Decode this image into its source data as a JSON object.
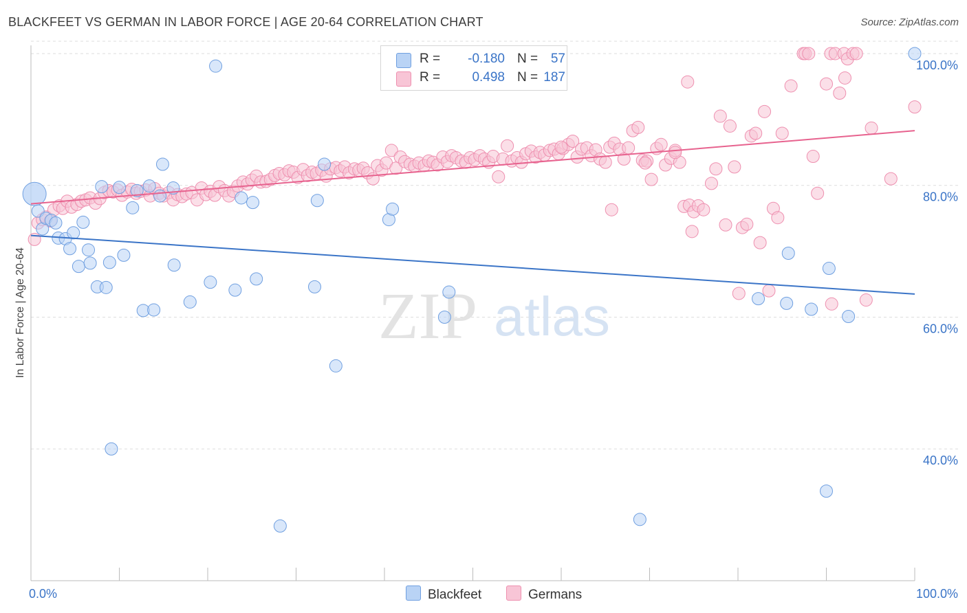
{
  "title": "BLACKFEET VS GERMAN IN LABOR FORCE | AGE 20-64 CORRELATION CHART",
  "source": "Source: ZipAtlas.com",
  "watermark": {
    "zip": "ZIP",
    "atlas": "atlas"
  },
  "colors": {
    "blackfeet_fill": "#b9d3f5",
    "blackfeet_stroke": "#6f9fe0",
    "blackfeet_line": "#3a74c7",
    "germans_fill": "#f8c5d6",
    "germans_stroke": "#ee8faf",
    "germans_line": "#e7628e",
    "tick_text": "#3a74c7",
    "grid": "#dddddd"
  },
  "legend": {
    "r_label": "R =",
    "n_label": "N =",
    "rows": [
      {
        "series": "Blackfeet",
        "r": "-0.180",
        "n": "57"
      },
      {
        "series": "Germans",
        "r": "0.498",
        "n": "187"
      }
    ]
  },
  "chart_data": {
    "type": "scatter",
    "title": "BLACKFEET VS GERMAN IN LABOR FORCE | AGE 20-64 CORRELATION CHART",
    "xlabel": "",
    "ylabel": "In Labor Force | Age 20-64",
    "xlim": [
      0,
      100
    ],
    "ylim": [
      20,
      102.5
    ],
    "x_tick_labels": [
      {
        "value": 0,
        "label": "0.0%"
      },
      {
        "value": 100,
        "label": "100.0%"
      }
    ],
    "y_tick_labels": [
      {
        "value": 40,
        "label": "40.0%"
      },
      {
        "value": 60,
        "label": "60.0%"
      },
      {
        "value": 80,
        "label": "80.0%"
      },
      {
        "value": 100,
        "label": "100.0%"
      }
    ],
    "grid": "horizontal dashed",
    "legend_position": "top-center and bottom",
    "series": [
      {
        "name": "Blackfeet",
        "r": -0.18,
        "n": 57,
        "trend": {
          "x": [
            0,
            100
          ],
          "y": [
            72.4,
            63.5
          ]
        },
        "points": [
          [
            0.4,
            78.7
          ],
          [
            0.8,
            76.1
          ],
          [
            1.3,
            73.4
          ],
          [
            1.7,
            75.0
          ],
          [
            2.3,
            74.7
          ],
          [
            2.8,
            74.3
          ],
          [
            3.1,
            72.0
          ],
          [
            3.9,
            71.9
          ],
          [
            4.4,
            70.4
          ],
          [
            4.8,
            72.8
          ],
          [
            5.4,
            67.7
          ],
          [
            5.9,
            74.4
          ],
          [
            6.5,
            70.2
          ],
          [
            6.7,
            68.2
          ],
          [
            7.5,
            64.6
          ],
          [
            8.0,
            79.8
          ],
          [
            8.5,
            64.5
          ],
          [
            8.9,
            68.3
          ],
          [
            9.1,
            40.0
          ],
          [
            10.0,
            79.7
          ],
          [
            10.5,
            69.4
          ],
          [
            11.5,
            76.6
          ],
          [
            12.0,
            79.2
          ],
          [
            12.7,
            61.0
          ],
          [
            13.4,
            79.9
          ],
          [
            13.9,
            61.1
          ],
          [
            14.6,
            78.4
          ],
          [
            14.9,
            83.2
          ],
          [
            16.1,
            79.6
          ],
          [
            16.2,
            67.9
          ],
          [
            18.0,
            62.3
          ],
          [
            20.3,
            65.3
          ],
          [
            20.9,
            98.1
          ],
          [
            23.1,
            64.1
          ],
          [
            23.8,
            78.1
          ],
          [
            25.1,
            77.4
          ],
          [
            25.5,
            65.8
          ],
          [
            28.2,
            28.3
          ],
          [
            32.1,
            64.6
          ],
          [
            32.4,
            77.7
          ],
          [
            33.2,
            83.2
          ],
          [
            34.5,
            52.6
          ],
          [
            40.5,
            74.8
          ],
          [
            40.9,
            76.4
          ],
          [
            46.8,
            60.0
          ],
          [
            47.3,
            63.8
          ],
          [
            68.9,
            29.3
          ],
          [
            82.3,
            62.8
          ],
          [
            85.5,
            62.1
          ],
          [
            85.7,
            69.7
          ],
          [
            88.3,
            61.2
          ],
          [
            90.0,
            33.6
          ],
          [
            90.3,
            67.4
          ],
          [
            92.5,
            60.1
          ],
          [
            100,
            100
          ]
        ]
      },
      {
        "name": "Germans",
        "r": 0.498,
        "n": 187,
        "trend": {
          "x": [
            0,
            100
          ],
          "y": [
            77.2,
            88.3
          ]
        },
        "points": [
          [
            0.4,
            71.8
          ],
          [
            0.8,
            74.3
          ],
          [
            1.3,
            74.8
          ],
          [
            1.7,
            75.2
          ],
          [
            2.2,
            74.6
          ],
          [
            2.6,
            76.3
          ],
          [
            3.2,
            76.9
          ],
          [
            3.6,
            76.5
          ],
          [
            4.1,
            77.6
          ],
          [
            4.6,
            76.7
          ],
          [
            5.2,
            77.1
          ],
          [
            5.7,
            77.6
          ],
          [
            6.2,
            77.8
          ],
          [
            6.7,
            78.1
          ],
          [
            7.3,
            77.3
          ],
          [
            7.8,
            78.0
          ],
          [
            8.3,
            78.9
          ],
          [
            8.8,
            79.2
          ],
          [
            9.3,
            79.0
          ],
          [
            9.8,
            79.3
          ],
          [
            10.3,
            78.5
          ],
          [
            10.9,
            79.0
          ],
          [
            11.4,
            79.4
          ],
          [
            11.9,
            78.8
          ],
          [
            12.4,
            79.1
          ],
          [
            13.0,
            79.3
          ],
          [
            13.5,
            78.4
          ],
          [
            14.0,
            79.5
          ],
          [
            14.5,
            78.8
          ],
          [
            15.0,
            78.4
          ],
          [
            15.6,
            78.9
          ],
          [
            16.1,
            77.8
          ],
          [
            16.6,
            78.6
          ],
          [
            17.1,
            78.3
          ],
          [
            17.6,
            78.7
          ],
          [
            18.2,
            78.9
          ],
          [
            18.8,
            77.8
          ],
          [
            19.3,
            79.6
          ],
          [
            19.8,
            78.6
          ],
          [
            20.3,
            79.1
          ],
          [
            20.8,
            78.5
          ],
          [
            21.3,
            79.8
          ],
          [
            21.9,
            79.2
          ],
          [
            22.4,
            78.4
          ],
          [
            22.9,
            79.1
          ],
          [
            23.4,
            79.9
          ],
          [
            24.0,
            80.5
          ],
          [
            24.5,
            80.2
          ],
          [
            25.0,
            80.8
          ],
          [
            25.5,
            81.4
          ],
          [
            26.0,
            80.5
          ],
          [
            26.6,
            80.6
          ],
          [
            27.1,
            80.9
          ],
          [
            27.6,
            81.5
          ],
          [
            28.1,
            81.8
          ],
          [
            28.7,
            81.6
          ],
          [
            29.2,
            82.2
          ],
          [
            29.7,
            82.0
          ],
          [
            30.2,
            81.2
          ],
          [
            30.8,
            82.4
          ],
          [
            31.3,
            81.5
          ],
          [
            31.8,
            82.0
          ],
          [
            32.3,
            81.8
          ],
          [
            32.9,
            82.3
          ],
          [
            33.4,
            81.4
          ],
          [
            33.9,
            82.5
          ],
          [
            34.5,
            82.7
          ],
          [
            35.0,
            82.2
          ],
          [
            35.5,
            82.8
          ],
          [
            36.0,
            81.9
          ],
          [
            36.6,
            82.5
          ],
          [
            37.1,
            82.3
          ],
          [
            37.6,
            82.6
          ],
          [
            38.1,
            81.9
          ],
          [
            38.7,
            81.0
          ],
          [
            39.2,
            83.0
          ],
          [
            39.7,
            82.3
          ],
          [
            40.2,
            83.4
          ],
          [
            40.8,
            85.3
          ],
          [
            41.3,
            82.6
          ],
          [
            41.8,
            84.3
          ],
          [
            42.3,
            83.6
          ],
          [
            42.9,
            83.2
          ],
          [
            43.4,
            82.9
          ],
          [
            43.9,
            83.4
          ],
          [
            44.5,
            83.0
          ],
          [
            45.0,
            83.7
          ],
          [
            45.5,
            83.5
          ],
          [
            46.0,
            83.1
          ],
          [
            46.6,
            84.3
          ],
          [
            47.1,
            83.6
          ],
          [
            47.6,
            84.5
          ],
          [
            48.1,
            84.2
          ],
          [
            48.7,
            83.7
          ],
          [
            49.2,
            83.5
          ],
          [
            49.7,
            84.2
          ],
          [
            50.2,
            83.9
          ],
          [
            50.8,
            84.5
          ],
          [
            51.3,
            84.0
          ],
          [
            51.8,
            83.5
          ],
          [
            52.3,
            84.4
          ],
          [
            52.9,
            81.3
          ],
          [
            53.4,
            84.0
          ],
          [
            53.9,
            86.0
          ],
          [
            54.4,
            83.7
          ],
          [
            55.0,
            84.2
          ],
          [
            55.5,
            83.5
          ],
          [
            56.0,
            84.8
          ],
          [
            56.6,
            85.2
          ],
          [
            57.1,
            84.3
          ],
          [
            57.6,
            85.0
          ],
          [
            58.1,
            84.6
          ],
          [
            58.7,
            85.3
          ],
          [
            59.2,
            85.5
          ],
          [
            59.7,
            84.8
          ],
          [
            60.2,
            85.6
          ],
          [
            60.8,
            86.2
          ],
          [
            61.3,
            86.7
          ],
          [
            61.8,
            84.3
          ],
          [
            62.3,
            85.5
          ],
          [
            62.9,
            85.7
          ],
          [
            63.4,
            84.5
          ],
          [
            63.9,
            85.4
          ],
          [
            64.4,
            84.0
          ],
          [
            65.0,
            83.5
          ],
          [
            65.5,
            85.8
          ],
          [
            66.0,
            86.4
          ],
          [
            66.6,
            85.5
          ],
          [
            67.1,
            84.0
          ],
          [
            67.6,
            85.7
          ],
          [
            68.1,
            88.3
          ],
          [
            68.7,
            88.8
          ],
          [
            69.2,
            83.8
          ],
          [
            69.7,
            83.7
          ],
          [
            70.2,
            80.9
          ],
          [
            70.8,
            85.6
          ],
          [
            71.3,
            86.2
          ],
          [
            71.8,
            83.1
          ],
          [
            72.4,
            84.1
          ],
          [
            72.9,
            85.3
          ],
          [
            73.4,
            83.5
          ],
          [
            73.9,
            76.8
          ],
          [
            74.5,
            77.0
          ],
          [
            75.0,
            76.0
          ],
          [
            75.5,
            76.9
          ],
          [
            76.1,
            76.3
          ],
          [
            77.0,
            80.3
          ],
          [
            77.5,
            82.5
          ],
          [
            78.0,
            90.5
          ],
          [
            78.6,
            74.0
          ],
          [
            79.1,
            89.0
          ],
          [
            79.6,
            82.8
          ],
          [
            80.1,
            63.6
          ],
          [
            80.5,
            73.6
          ],
          [
            81.0,
            74.1
          ],
          [
            81.5,
            87.5
          ],
          [
            82.0,
            87.9
          ],
          [
            82.5,
            71.3
          ],
          [
            83.0,
            91.2
          ],
          [
            83.5,
            64.0
          ],
          [
            84.0,
            76.5
          ],
          [
            84.5,
            75.1
          ],
          [
            85.0,
            87.9
          ],
          [
            86.0,
            95.1
          ],
          [
            87.4,
            100
          ],
          [
            87.6,
            100
          ],
          [
            88.0,
            100
          ],
          [
            88.5,
            84.4
          ],
          [
            89.0,
            78.8
          ],
          [
            90.0,
            95.4
          ],
          [
            90.5,
            100
          ],
          [
            91.0,
            100
          ],
          [
            91.5,
            94.0
          ],
          [
            92.0,
            100
          ],
          [
            92.4,
            99.2
          ],
          [
            93.0,
            100
          ],
          [
            93.4,
            100
          ],
          [
            94.5,
            62.6
          ],
          [
            95.1,
            88.7
          ],
          [
            97.3,
            81.0
          ],
          [
            100,
            91.9
          ],
          [
            74.3,
            95.7
          ],
          [
            69.5,
            83.4
          ],
          [
            72.9,
            85.0
          ],
          [
            74.8,
            73.0
          ],
          [
            65.7,
            76.3
          ],
          [
            60.0,
            85.8
          ],
          [
            92.1,
            96.3
          ],
          [
            90.6,
            62.0
          ]
        ]
      }
    ]
  }
}
